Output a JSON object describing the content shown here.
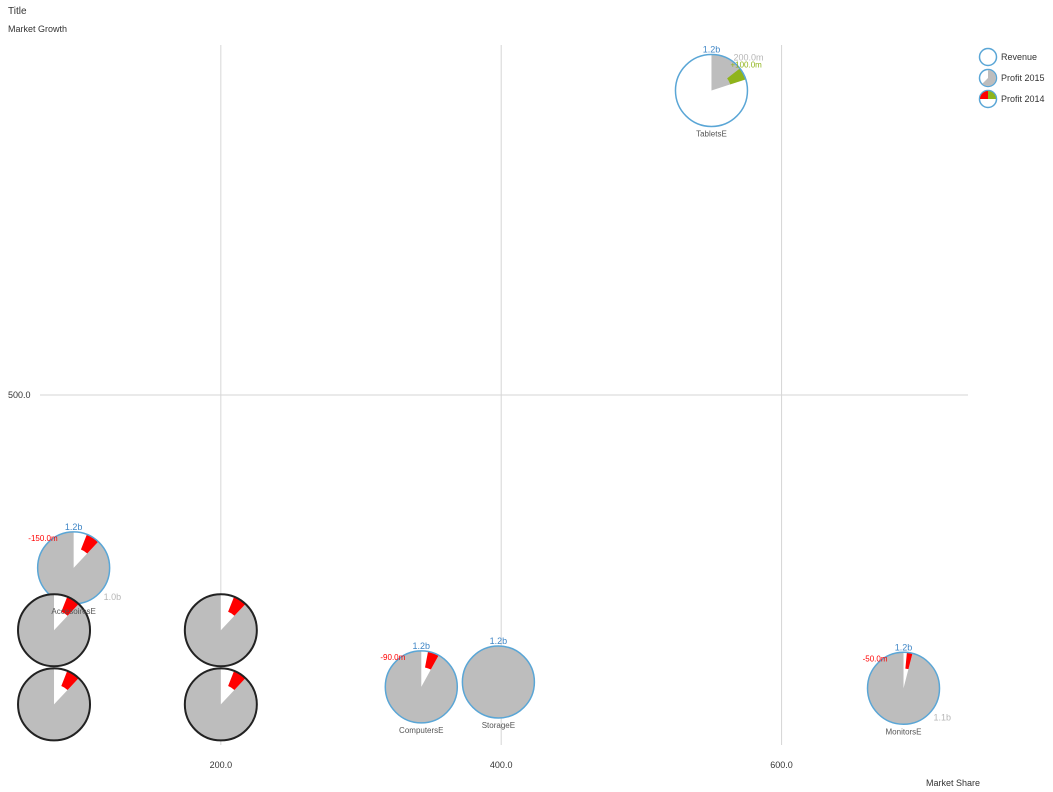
{
  "colors": {
    "revenue": "#5aa6d6",
    "profit": "#bdbdbd",
    "negative": "#ff0000",
    "positive": "#8fb41b",
    "outline": "#222222",
    "grid": "#d6d6d6",
    "blueLabel": "#3f86c6",
    "grayLabel": "#b6b6b6"
  },
  "chart_data": {
    "type": "scatter",
    "subtype": "bubble-pie",
    "title": "Title",
    "subtitle": "Market Growth",
    "xlabel": "Market Share",
    "ylabel": "",
    "xlim": [
      71,
      733
    ],
    "ylim": [
      0,
      1000
    ],
    "x_ticks": [
      "200.0",
      "400.0",
      "600.0"
    ],
    "x_tick_values": [
      200,
      400,
      600
    ],
    "y_ticks": [
      "500.0"
    ],
    "y_tick_values": [
      500
    ],
    "grid": true,
    "legend": {
      "position": "top-right",
      "items": [
        {
          "label": "Revenue",
          "icon": "revenue-ring"
        },
        {
          "label": "Profit 2015",
          "icon": "profit-2015-pie"
        },
        {
          "label": "Profit 2014",
          "icon": "profit-2014-pie"
        }
      ]
    },
    "bubbles": [
      {
        "name": "TabletsE",
        "x": 550,
        "y": 935,
        "revenue_label": "1.2b",
        "fill_fraction": 0.2,
        "delta_fraction": 0.055,
        "delta_sign": "positive",
        "delta_label": "+100.0m",
        "profit_label": "200.0m",
        "outline": "revenue"
      },
      {
        "name": "AccesoiresE",
        "x": 95,
        "y": 253,
        "revenue_label": "1.2b",
        "fill_fraction": 0.88,
        "delta_fraction": 0.06,
        "delta_sign": "negative",
        "delta_label": "-150.0m",
        "profit_label": "1.0b",
        "outline": "revenue"
      },
      {
        "name": "ComputersE",
        "x": 343,
        "y": 83,
        "revenue_label": "1.2b",
        "fill_fraction": 0.92,
        "delta_fraction": 0.05,
        "delta_sign": "negative",
        "delta_label": "-90.0m",
        "profit_label": "",
        "outline": "revenue"
      },
      {
        "name": "StorageE",
        "x": 398,
        "y": 90,
        "revenue_label": "1.2b",
        "fill_fraction": 1.0,
        "delta_fraction": 0,
        "delta_sign": "none",
        "delta_label": "",
        "profit_label": "",
        "outline": "revenue"
      },
      {
        "name": "MonitorsE",
        "x": 687,
        "y": 81,
        "revenue_label": "1.2b",
        "fill_fraction": 0.96,
        "delta_fraction": 0.025,
        "delta_sign": "negative",
        "delta_label": "-50.0m",
        "profit_label": "1.1b",
        "outline": "revenue"
      },
      {
        "name": "",
        "x": 81,
        "y": 164,
        "revenue_label": "",
        "fill_fraction": 0.88,
        "delta_fraction": 0.06,
        "delta_sign": "negative",
        "delta_label": "",
        "profit_label": "",
        "outline": "dark"
      },
      {
        "name": "",
        "x": 81,
        "y": 58,
        "revenue_label": "",
        "fill_fraction": 0.88,
        "delta_fraction": 0.06,
        "delta_sign": "negative",
        "delta_label": "",
        "profit_label": "",
        "outline": "dark"
      },
      {
        "name": "",
        "x": 200,
        "y": 164,
        "revenue_label": "",
        "fill_fraction": 0.88,
        "delta_fraction": 0.06,
        "delta_sign": "negative",
        "delta_label": "",
        "profit_label": "",
        "outline": "dark"
      },
      {
        "name": "",
        "x": 200,
        "y": 58,
        "revenue_label": "",
        "fill_fraction": 0.88,
        "delta_fraction": 0.06,
        "delta_sign": "negative",
        "delta_label": "",
        "profit_label": "",
        "outline": "dark"
      }
    ]
  }
}
